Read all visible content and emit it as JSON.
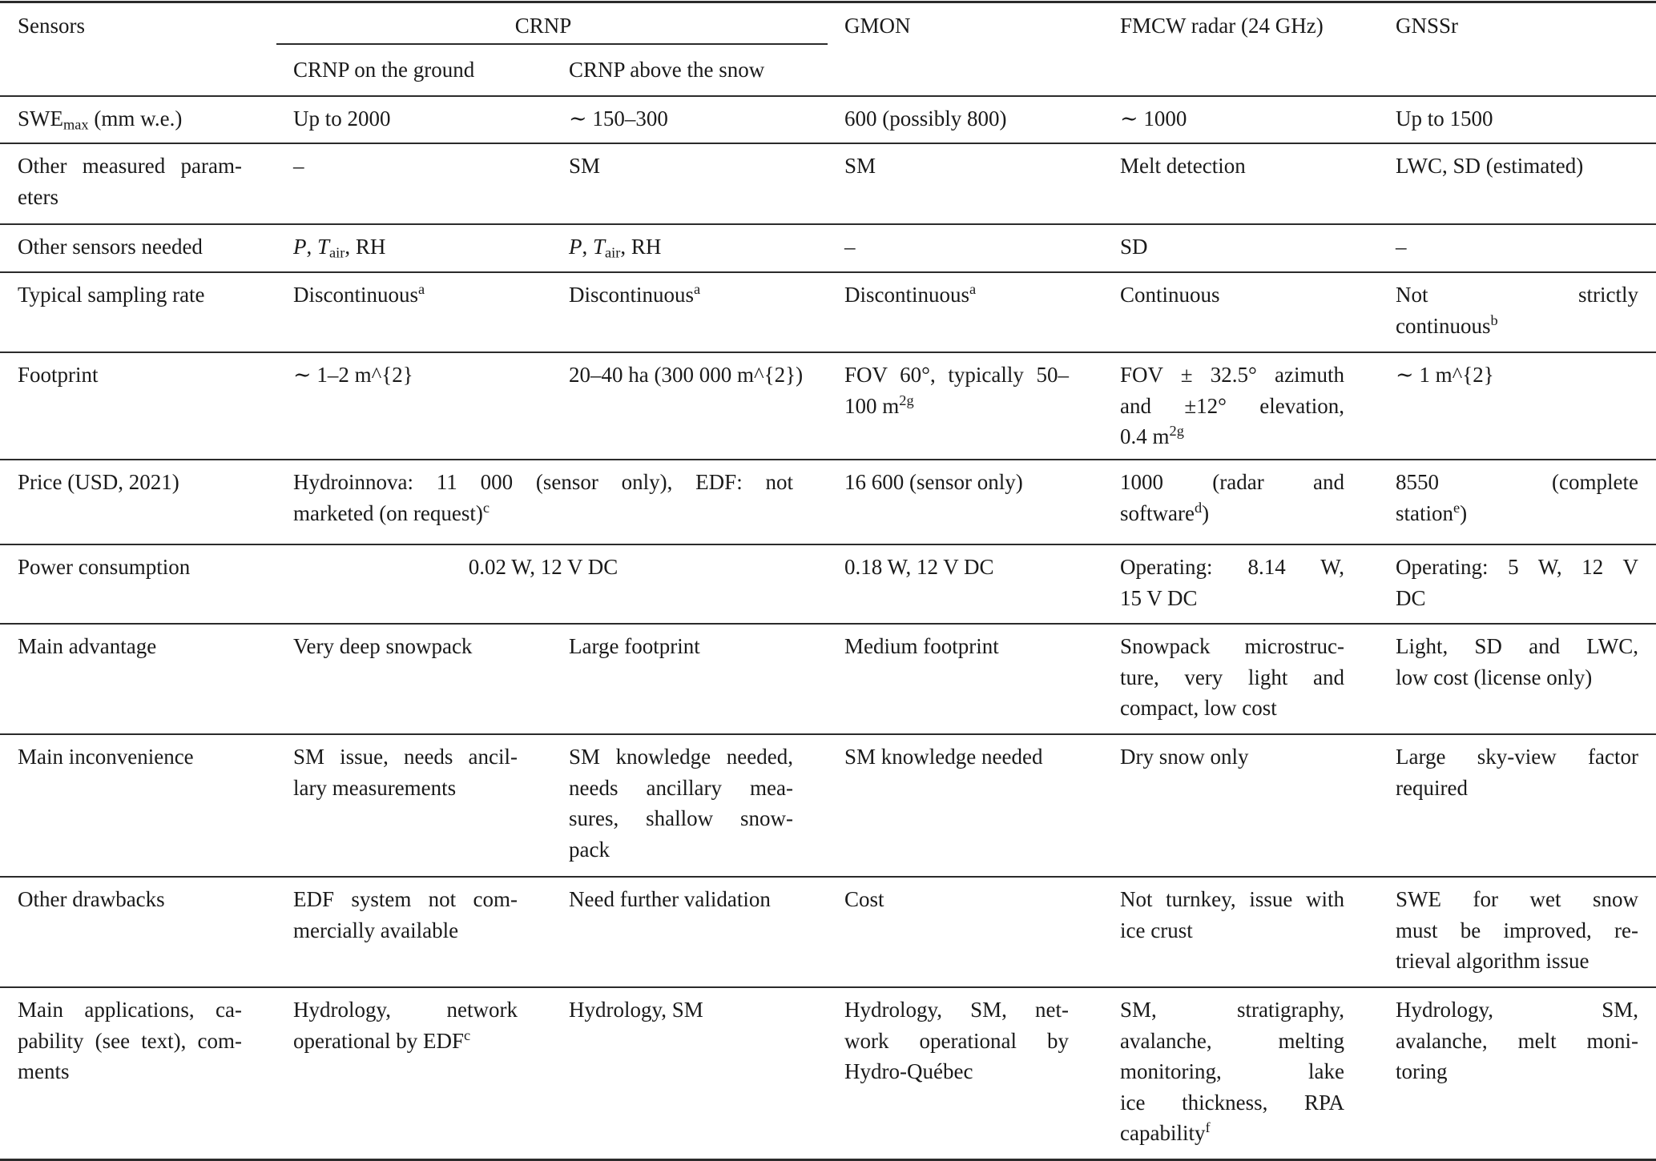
{
  "header": {
    "sensors": "Sensors",
    "crnp": "CRNP",
    "crnp_ground": "CRNP on the ground",
    "crnp_above": "CRNP above the snow",
    "gmon": "GMON",
    "fmcw": "FMCW radar (24 GHz)",
    "gnssr": "GNSSr"
  },
  "rows": [
    {
      "label": "SWE_{max} (mm w.e.)",
      "cells": [
        "Up to 2000",
        "∼ 150–300",
        "600 (possibly 800)",
        "∼ 1000",
        "Up to 1500"
      ]
    },
    {
      "label": "Other measured param-\neters",
      "cells": [
        "–",
        "SM",
        "SM",
        "Melt detection",
        "LWC, SD (estimated)"
      ]
    },
    {
      "label": "Other sensors needed",
      "cells": [
        "*P*, *T*_{air}, RH",
        "*P*, *T*_{air}, RH",
        "–",
        "SD",
        "–"
      ]
    },
    {
      "label": "Typical sampling rate",
      "cells": [
        "Discontinuous^{a}",
        "Discontinuous^{a}",
        "Discontinuous^{a}",
        "Continuous",
        "Not strictly\ncontinuous^{b}"
      ]
    },
    {
      "label": "Footprint",
      "cells": [
        "∼ 1–2 m^{2}",
        "20–40 ha (300 000 m^{2})",
        "FOV 60°, typically 50–\n100 m^{2}^{g}",
        "FOV ± 32.5° azimuth\nand ±12° elevation,\n0.4 m^{2}^{g}",
        "∼ 1 m^{2}"
      ]
    },
    {
      "label": "Price (USD, 2021)",
      "cells": [
        "Hydroinnova: 11 000 (sensor only), EDF: not\nmarketed (on request)^{c}",
        "16 600 (sensor only)",
        "1000 (radar and\nsoftware^{d})",
        "8550 (complete\nstation^{e})"
      ]
    },
    {
      "label": "Power consumption",
      "cells": [
        "0.02 W, 12 V DC",
        "0.18 W, 12 V DC",
        "Operating: 8.14 W,\n15 V DC",
        "Operating: 5 W, 12 V\nDC"
      ]
    },
    {
      "label": "Main advantage",
      "cells": [
        "Very deep snowpack",
        "Large footprint",
        "Medium footprint",
        "Snowpack microstruc-\nture, very light and\ncompact, low cost",
        "Light, SD and LWC,\nlow cost (license only)"
      ]
    },
    {
      "label": "Main inconvenience",
      "cells": [
        "SM issue, needs ancil-\nlary measurements",
        "SM knowledge needed,\nneeds ancillary mea-\nsures, shallow snow-\npack",
        "SM knowledge needed",
        "Dry snow only",
        "Large sky-view factor\nrequired"
      ]
    },
    {
      "label": "Other drawbacks",
      "cells": [
        "EDF system not com-\nmercially available",
        "Need further validation",
        "Cost",
        "Not turnkey, issue with\nice crust",
        "SWE for wet snow\nmust be improved, re-\ntrieval algorithm issue"
      ]
    },
    {
      "label": "Main applications, ca-\npability (see text), com-\nments",
      "cells": [
        "Hydrology, network\noperational by EDF^{c}",
        "Hydrology, SM",
        "Hydrology, SM, net-\nwork operational by\nHydro-Québec",
        "SM, stratigraphy,\navalanche, melting\nmonitoring, lake\nice thickness, RPA\ncapability^{f}",
        "Hydrology, SM,\navalanche, melt moni-\ntoring"
      ]
    }
  ]
}
